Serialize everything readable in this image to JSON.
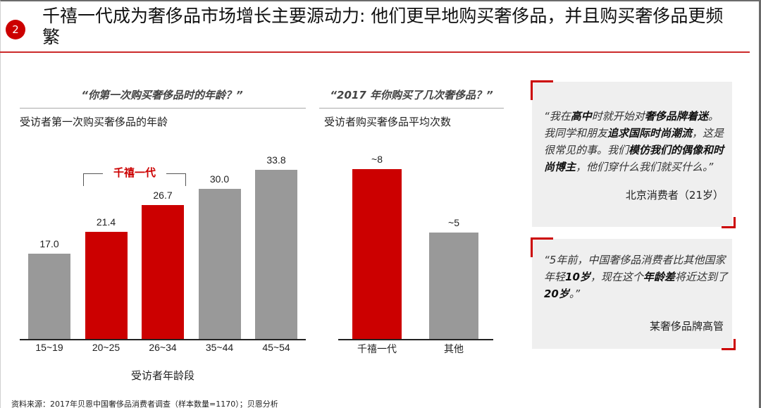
{
  "header": {
    "badge_number": "2",
    "title": "千禧一代成为奢侈品市场增长主要源动力: 他们更早地购买奢侈品，并且购买奢侈品更频繁",
    "accent_color": "#cc0000"
  },
  "left_panel": {
    "question": "“你第一次购买奢侈品时的年龄？”",
    "subtitle": "受访者第一次购买奢侈品的年龄",
    "bracket_label": "千禧一代",
    "xlabel": "受访者年龄段"
  },
  "middle_panel": {
    "question": "“2017 年你购买了几次奢侈品？”",
    "subtitle": "受访者购买奢侈品平均次数"
  },
  "quotes": [
    {
      "segments": [
        {
          "t": "“我在",
          "b": false
        },
        {
          "t": "高中",
          "b": true
        },
        {
          "t": "时就开始对",
          "b": false
        },
        {
          "t": "奢侈品牌着迷",
          "b": true
        },
        {
          "t": "。我同学和朋友",
          "b": false
        },
        {
          "t": "追求国际时尚潮流",
          "b": true
        },
        {
          "t": "，这是很常见的事。我们",
          "b": false
        },
        {
          "t": "模仿我们的偶像和时尚博主",
          "b": true
        },
        {
          "t": "，他们穿什么我们就买什么。”",
          "b": false
        }
      ],
      "source": "北京消费者（21岁）"
    },
    {
      "segments": [
        {
          "t": "“5年前，中国奢侈品消费者比其他国家年轻",
          "b": false
        },
        {
          "t": "10岁",
          "b": true
        },
        {
          "t": "，现在这个",
          "b": false
        },
        {
          "t": "年龄差",
          "b": true
        },
        {
          "t": "将近达到了",
          "b": false
        },
        {
          "t": "20岁",
          "b": true
        },
        {
          "t": "。”",
          "b": false
        }
      ],
      "source": "某奢侈品牌高管"
    }
  ],
  "footer": {
    "source": "资料来源：2017年贝恩中国奢侈品消费者调查（样本数量=1170）；贝恩分析"
  },
  "chart_data": [
    {
      "type": "bar",
      "title": "“你第一次购买奢侈品时的年龄？”",
      "subtitle": "受访者第一次购买奢侈品的年龄",
      "categories": [
        "15~19",
        "20~25",
        "26~34",
        "35~44",
        "45~54"
      ],
      "values": [
        17.0,
        21.4,
        26.7,
        30.0,
        33.8
      ],
      "value_labels": [
        "17.0",
        "21.4",
        "26.7",
        "30.0",
        "33.8"
      ],
      "colors": [
        "#999999",
        "#cc0000",
        "#cc0000",
        "#999999",
        "#999999"
      ],
      "xlabel": "受访者年龄段",
      "ylabel": "",
      "ylim": [
        0,
        33.8
      ],
      "grid": false,
      "annotations": [
        {
          "text": "千禧一代",
          "span": [
            "20~25",
            "26~34"
          ],
          "color": "#cc0000"
        }
      ]
    },
    {
      "type": "bar",
      "title": "“2017 年你购买了几次奢侈品？”",
      "subtitle": "受访者购买奢侈品平均次数",
      "categories": [
        "千禧一代",
        "其他"
      ],
      "values": [
        8,
        5
      ],
      "value_labels": [
        "~8",
        "~5"
      ],
      "colors": [
        "#cc0000",
        "#999999"
      ],
      "xlabel": "",
      "ylabel": "",
      "ylim": [
        0,
        8
      ],
      "grid": false
    }
  ]
}
